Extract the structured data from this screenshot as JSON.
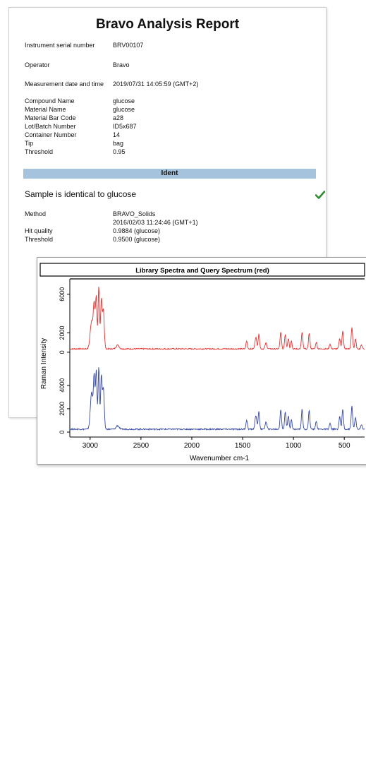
{
  "report": {
    "title": "Bravo Analysis Report",
    "fields": [
      {
        "label": "Instrument serial number",
        "value": "BRV00107"
      },
      {
        "label": "Operator",
        "value": "Bravo"
      },
      {
        "label": "Measurement date and time",
        "value": "2019/07/31  14:05:59 (GMT+2)"
      },
      {
        "label": "Compound Name",
        "value": "glucose"
      },
      {
        "label": "Material Name",
        "value": "glucose"
      },
      {
        "label": "Material Bar Code",
        "value": "a28"
      },
      {
        "label": "Lot/Batch Number",
        "value": "ID5x687"
      },
      {
        "label": "Container Number",
        "value": "14"
      },
      {
        "label": "Tip",
        "value": "bag"
      },
      {
        "label": "Threshold",
        "value": "0.95"
      }
    ]
  },
  "ident": {
    "section_title": "Ident",
    "verdict": "Sample is identical to glucose",
    "method_label": "Method",
    "method_value": "BRAVO_Solids",
    "method_date": "2016/02/03 11:24:46 (GMT+1)",
    "hit_quality_label": "Hit quality",
    "hit_quality_value": "0.9884   (glucose)",
    "threshold_label": "Threshold",
    "threshold_value": "0.9500   (glucose)",
    "status_color": "#2e8b2e",
    "status_icon": "check-icon"
  },
  "chart_data": {
    "type": "line",
    "title": "Library Spectra and Query Spectrum (red)",
    "xlabel": "Wavenumber cm-1",
    "ylabel": "Raman Intensity",
    "xlim": [
      3200,
      300
    ],
    "x_ticks": [
      3000,
      2500,
      2000,
      1500,
      1000,
      500
    ],
    "top_y_ticks": [
      0,
      2000,
      6000
    ],
    "bottom_y_ticks": [
      0,
      2000,
      4000
    ],
    "top_ylim": [
      -300,
      7000
    ],
    "bottom_ylim": [
      -300,
      6100
    ],
    "series": [
      {
        "color": "#e83030",
        "panel": "top",
        "peaks": [
          [
            2985,
            2900,
            20
          ],
          [
            2960,
            4200,
            12
          ],
          [
            2940,
            5200,
            10
          ],
          [
            2915,
            6500,
            10
          ],
          [
            2890,
            5000,
            10
          ],
          [
            2870,
            4100,
            12
          ],
          [
            2730,
            400,
            20
          ],
          [
            1460,
            800,
            10
          ],
          [
            1370,
            1200,
            12
          ],
          [
            1340,
            1500,
            10
          ],
          [
            1270,
            600,
            12
          ],
          [
            1125,
            1700,
            10
          ],
          [
            1080,
            1500,
            10
          ],
          [
            1050,
            1100,
            10
          ],
          [
            1020,
            900,
            8
          ],
          [
            915,
            1700,
            10
          ],
          [
            845,
            1600,
            10
          ],
          [
            775,
            700,
            10
          ],
          [
            640,
            500,
            10
          ],
          [
            545,
            1100,
            10
          ],
          [
            515,
            1900,
            10
          ],
          [
            425,
            2200,
            10
          ],
          [
            390,
            1000,
            10
          ],
          [
            330,
            400,
            10
          ]
        ],
        "baseline": 350
      },
      {
        "color": "#3346a5",
        "panel": "bottom",
        "peaks": [
          [
            2985,
            3200,
            18
          ],
          [
            2960,
            4300,
            10
          ],
          [
            2940,
            5000,
            10
          ],
          [
            2915,
            5300,
            10
          ],
          [
            2890,
            4500,
            10
          ],
          [
            2870,
            3500,
            12
          ],
          [
            2730,
            300,
            20
          ],
          [
            1460,
            800,
            10
          ],
          [
            1370,
            1200,
            12
          ],
          [
            1340,
            1500,
            10
          ],
          [
            1270,
            600,
            12
          ],
          [
            1125,
            1700,
            10
          ],
          [
            1080,
            1500,
            10
          ],
          [
            1050,
            1100,
            10
          ],
          [
            1020,
            900,
            8
          ],
          [
            915,
            1700,
            10
          ],
          [
            845,
            1600,
            10
          ],
          [
            775,
            700,
            10
          ],
          [
            640,
            500,
            10
          ],
          [
            545,
            1100,
            10
          ],
          [
            515,
            1700,
            10
          ],
          [
            425,
            2000,
            10
          ],
          [
            390,
            1000,
            10
          ],
          [
            330,
            400,
            10
          ]
        ],
        "baseline": 250
      }
    ]
  }
}
